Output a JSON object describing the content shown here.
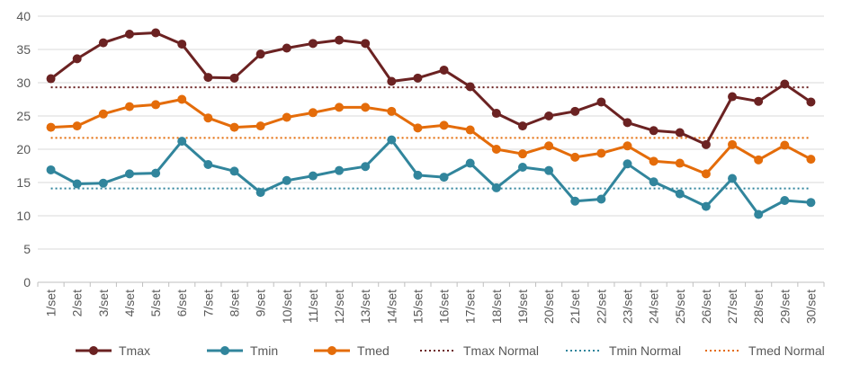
{
  "chart_data": {
    "type": "line",
    "title": "",
    "xlabel": "",
    "ylabel": "",
    "ylim": [
      0,
      40
    ],
    "yticks": [
      0,
      5,
      10,
      15,
      20,
      25,
      30,
      35,
      40
    ],
    "grid": "horizontal",
    "legend_position": "bottom",
    "categories": [
      "1/set",
      "2/set",
      "3/set",
      "4/set",
      "5/set",
      "6/set",
      "7/set",
      "8/set",
      "9/set",
      "10/set",
      "11/set",
      "12/set",
      "13/set",
      "14/set",
      "15/set",
      "16/set",
      "17/set",
      "18/set",
      "19/set",
      "20/set",
      "21/set",
      "22/set",
      "23/set",
      "24/set",
      "25/set",
      "26/set",
      "27/set",
      "28/set",
      "29/set",
      "30/set"
    ],
    "series": [
      {
        "name": "Tmax",
        "color": "#6b2222",
        "style": "solid-marker",
        "values": [
          30.6,
          33.6,
          36.0,
          37.3,
          37.5,
          35.8,
          30.8,
          30.7,
          34.3,
          35.2,
          35.9,
          36.4,
          35.9,
          30.2,
          30.7,
          31.9,
          29.4,
          25.4,
          23.5,
          25.0,
          25.7,
          27.1,
          24.0,
          22.8,
          22.5,
          20.7,
          27.9,
          27.2,
          29.8,
          27.1
        ]
      },
      {
        "name": "Tmin",
        "color": "#31859c",
        "style": "solid-marker",
        "values": [
          16.9,
          14.8,
          14.9,
          16.3,
          16.4,
          21.2,
          17.7,
          16.7,
          13.5,
          15.3,
          16.0,
          16.8,
          17.4,
          21.4,
          16.1,
          15.8,
          17.9,
          14.2,
          17.3,
          16.8,
          12.2,
          12.5,
          17.8,
          15.1,
          13.3,
          11.4,
          15.6,
          10.2,
          12.3,
          12.0
        ]
      },
      {
        "name": "Tmed",
        "color": "#e46c0a",
        "style": "solid-marker",
        "values": [
          23.3,
          23.5,
          25.3,
          26.4,
          26.7,
          27.5,
          24.7,
          23.3,
          23.5,
          24.8,
          25.5,
          26.3,
          26.3,
          25.7,
          23.2,
          23.6,
          22.9,
          20.0,
          19.3,
          20.5,
          18.8,
          19.4,
          20.5,
          18.2,
          17.9,
          16.3,
          20.7,
          18.4,
          20.6,
          18.5
        ]
      },
      {
        "name": "Tmax Normal",
        "color": "#6b2222",
        "style": "dotted",
        "value": 29.3
      },
      {
        "name": "Tmin Normal",
        "color": "#31859c",
        "style": "dotted",
        "value": 14.1
      },
      {
        "name": "Tmed Normal",
        "color": "#e46c0a",
        "style": "dotted",
        "value": 21.7
      }
    ]
  }
}
